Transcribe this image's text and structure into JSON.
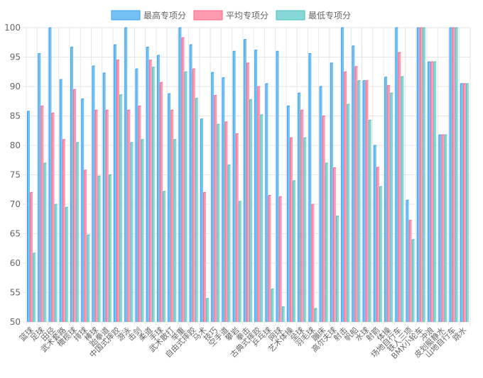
{
  "colors": {
    "max_fill": "#74bff3",
    "max_stroke": "#36a2eb",
    "avg_fill": "#ff9bb1",
    "avg_stroke": "#ff6384",
    "min_fill": "#86d8d6",
    "min_stroke": "#4bc0c0",
    "grid": "#e6e6e6",
    "axis_text": "#666666"
  },
  "chart_data": {
    "type": "bar",
    "title": "",
    "xlabel": "",
    "ylabel": "",
    "ylim": [
      50,
      100
    ],
    "yticks": [
      50,
      55,
      60,
      65,
      70,
      75,
      80,
      85,
      90,
      95,
      100
    ],
    "grid": true,
    "legend_position": "top-center",
    "categories": [
      "篮球",
      "足球",
      "田径",
      "武术套路",
      "橄榄球",
      "排球",
      "棒球",
      "跆拳道",
      "中国式摔跤",
      "游泳",
      "击剑",
      "柔道",
      "手球",
      "武术散打",
      "举重",
      "自由式摔跤",
      "马术",
      "技巧",
      "空手道",
      "攀岩",
      "拳击",
      "古典式摔跤",
      "乒乓球",
      "网球",
      "艺术体操",
      "垒球",
      "羽毛球",
      "蹦床",
      "高尔夫球",
      "射击",
      "帆船",
      "水球",
      "射箭",
      "体操",
      "场地自行车",
      "铁人三项",
      "BMX小轮车",
      "冲浪",
      "皮划艇静水",
      "山地自行车",
      "跳水"
    ],
    "series": [
      {
        "name": "最高专项分",
        "color_key": "max",
        "values": [
          85.8,
          95.6,
          100,
          91.2,
          96.7,
          87.9,
          93.5,
          92.3,
          97.1,
          100,
          93.0,
          96.7,
          95.3,
          88.8,
          100,
          97.1,
          84.5,
          92.4,
          91.5,
          96.0,
          98.0,
          96.2,
          90.5,
          96.0,
          86.7,
          88.9,
          95.6,
          90.0,
          94.0,
          100,
          96.9,
          91.0,
          80.0,
          91.6,
          100,
          70.7,
          100,
          94.2,
          81.8,
          100,
          90.5
        ]
      },
      {
        "name": "平均专项分",
        "color_key": "avg",
        "values": [
          72.0,
          86.7,
          85.5,
          81.0,
          89.5,
          75.8,
          86.0,
          86.0,
          94.5,
          86.0,
          86.7,
          94.5,
          90.7,
          86.0,
          98.3,
          93.0,
          72.0,
          88.5,
          84.0,
          82.0,
          94.0,
          90.0,
          71.5,
          71.3,
          81.3,
          86.0,
          70.0,
          85.0,
          76.2,
          92.5,
          93.4,
          91.0,
          76.3,
          90.2,
          95.8,
          67.3,
          100,
          94.2,
          81.8,
          100,
          90.5
        ]
      },
      {
        "name": "最低专项分",
        "color_key": "min",
        "values": [
          61.7,
          77.0,
          70.0,
          69.5,
          80.5,
          64.8,
          74.8,
          75.0,
          88.6,
          80.5,
          81.0,
          93.3,
          72.2,
          81.0,
          92.5,
          88.0,
          54.0,
          83.6,
          76.7,
          70.5,
          87.8,
          85.2,
          55.6,
          52.6,
          74.0,
          81.3,
          52.3,
          77.0,
          68.0,
          87.0,
          91.0,
          84.3,
          73.0,
          88.9,
          91.7,
          64.0,
          100,
          94.2,
          81.8,
          100,
          90.5
        ]
      }
    ]
  }
}
